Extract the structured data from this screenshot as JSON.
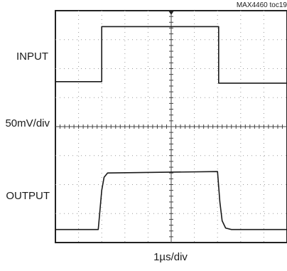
{
  "chart_data": {
    "type": "line",
    "reference": "MAX4460 toc19",
    "labels": {
      "input": "INPUT",
      "vertical_scale": "50mV/div",
      "output": "OUTPUT",
      "time_scale": "1µs/div"
    },
    "grid": true,
    "x_divisions": 10,
    "y_divisions": 8,
    "xlim": [
      0,
      10
    ],
    "ylim": [
      -4,
      4
    ],
    "series": [
      {
        "x": [
          0,
          2.0,
          2.0,
          7.05,
          7.05,
          10
        ],
        "y": [
          1.55,
          1.55,
          3.45,
          3.45,
          1.5,
          1.5
        ]
      },
      {
        "x": [
          0,
          1.85,
          2.0,
          2.1,
          2.25,
          7.0,
          7.1,
          7.2,
          7.35,
          7.6,
          10
        ],
        "y": [
          -3.55,
          -3.55,
          -2.2,
          -1.75,
          -1.6,
          -1.55,
          -2.6,
          -3.25,
          -3.5,
          -3.55,
          -3.55
        ]
      }
    ]
  }
}
